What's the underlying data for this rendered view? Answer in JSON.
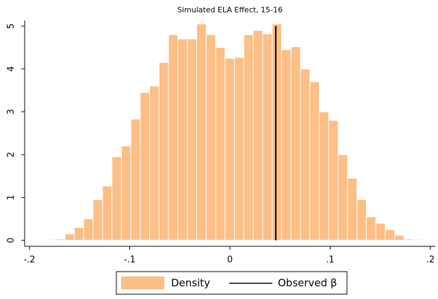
{
  "chart_data": {
    "type": "histogram",
    "title": "Simulated ELA Effect, 15-16",
    "name": "Density",
    "color": "#fdbf85",
    "bins": [
      -0.1835,
      -0.1741,
      -0.1647,
      -0.1553,
      -0.1459,
      -0.1365,
      -0.1271,
      -0.1177,
      -0.1083,
      -0.0989,
      -0.0895,
      -0.0801,
      -0.0707,
      -0.0613,
      -0.0519,
      -0.0425,
      -0.0331,
      -0.0237,
      -0.0143,
      -0.0049,
      0.0045,
      0.0139,
      0.0233,
      0.0327,
      0.0421,
      0.0515,
      0.0609,
      0.0703,
      0.0797,
      0.0891,
      0.0985,
      0.1079,
      0.1173,
      0.1267,
      0.1361,
      0.1455,
      0.1549,
      0.1643,
      0.1737,
      0.1831,
      0.1925
    ],
    "values": [
      0.02,
      0.03,
      0.15,
      0.3,
      0.5,
      0.95,
      1.27,
      1.95,
      2.2,
      2.83,
      3.45,
      3.6,
      4.15,
      4.8,
      4.7,
      4.7,
      5.05,
      4.8,
      4.5,
      4.25,
      4.27,
      4.8,
      4.9,
      4.82,
      5.05,
      4.45,
      4.52,
      4.0,
      3.7,
      3.0,
      2.8,
      2.0,
      1.45,
      0.95,
      0.55,
      0.4,
      0.25,
      0.12,
      0.03,
      0.02
    ],
    "observed": {
      "name": "Observed β",
      "x": 0.0457,
      "y": [
        0,
        5
      ],
      "color": "#000000"
    },
    "xlim": [
      -0.2048,
      0.2048
    ],
    "ylim": [
      -0.14,
      5.13
    ],
    "xticks": [
      {
        "value": -0.2,
        "label": "-.2"
      },
      {
        "value": -0.1,
        "label": "-.1"
      },
      0,
      {
        "value": 0.1,
        "label": ".1"
      },
      {
        "value": 0.2,
        "label": ".2"
      }
    ],
    "yticks": [
      0,
      1,
      2,
      3,
      4,
      5
    ]
  }
}
